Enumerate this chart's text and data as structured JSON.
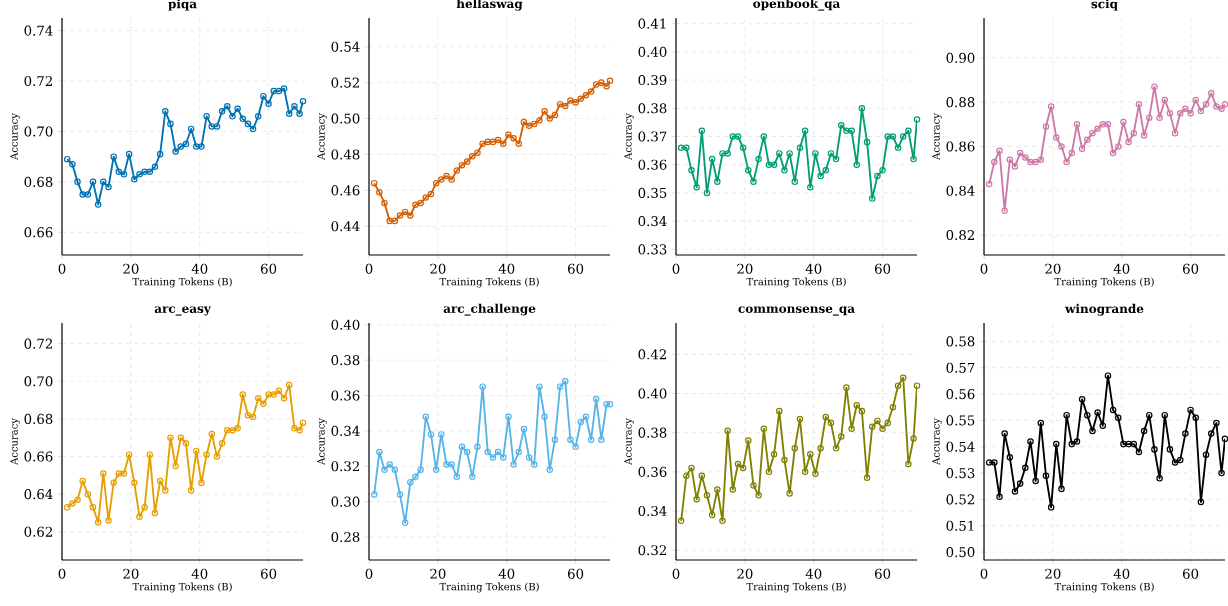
{
  "chart_data": [
    {
      "type": "line",
      "title": "piqa",
      "xlabel": "Training Tokens (B)",
      "ylabel": "Accuracy",
      "color": "#0072b2",
      "marker": "circle",
      "grid": true,
      "xlim": [
        0,
        70
      ],
      "xticks": [
        0,
        20,
        40,
        60
      ],
      "ylim": [
        0.651,
        0.745
      ],
      "yticks": [
        {
          "value": 0.66,
          "label": "0.66"
        },
        {
          "value": 0.68,
          "label": "0.68"
        },
        {
          "value": 0.7,
          "label": "0.70"
        },
        {
          "value": 0.72,
          "label": "0.72"
        },
        {
          "value": 0.74,
          "label": "0.74"
        }
      ],
      "x": [
        1.5,
        3,
        4.5,
        6,
        7.5,
        9,
        10.5,
        12,
        13.5,
        15,
        16.5,
        18,
        19.5,
        21,
        22.5,
        24,
        25.5,
        27,
        28.5,
        30,
        31.5,
        33,
        34.5,
        36,
        37.5,
        39,
        40.5,
        42,
        43.5,
        45,
        46.5,
        48,
        49.5,
        51,
        52.5,
        54,
        55.5,
        57,
        58.5,
        60,
        61.5,
        63,
        64.5,
        66,
        67.5,
        69,
        70
      ],
      "values": [
        0.689,
        0.687,
        0.68,
        0.675,
        0.675,
        0.68,
        0.671,
        0.68,
        0.678,
        0.69,
        0.684,
        0.683,
        0.691,
        0.681,
        0.683,
        0.684,
        0.684,
        0.686,
        0.691,
        0.708,
        0.703,
        0.692,
        0.694,
        0.695,
        0.701,
        0.694,
        0.694,
        0.706,
        0.702,
        0.702,
        0.708,
        0.71,
        0.706,
        0.709,
        0.705,
        0.703,
        0.701,
        0.706,
        0.714,
        0.711,
        0.716,
        0.716,
        0.717,
        0.707,
        0.71,
        0.707,
        0.712
      ]
    },
    {
      "type": "line",
      "title": "hellaswag",
      "xlabel": "Training Tokens (B)",
      "ylabel": "Accuracy",
      "color": "#d55e00",
      "marker": "circle",
      "grid": true,
      "xlim": [
        0,
        70
      ],
      "xticks": [
        0,
        20,
        40,
        60
      ],
      "ylim": [
        0.424,
        0.556
      ],
      "yticks": [
        {
          "value": 0.44,
          "label": "0.44"
        },
        {
          "value": 0.46,
          "label": "0.46"
        },
        {
          "value": 0.48,
          "label": "0.48"
        },
        {
          "value": 0.5,
          "label": "0.50"
        },
        {
          "value": 0.52,
          "label": "0.52"
        },
        {
          "value": 0.54,
          "label": "0.54"
        }
      ],
      "x": [
        1.5,
        3,
        4.5,
        6,
        7.5,
        9,
        10.5,
        12,
        13.5,
        15,
        16.5,
        18,
        19.5,
        21,
        22.5,
        24,
        25.5,
        27,
        28.5,
        30,
        31.5,
        33,
        34.5,
        36,
        37.5,
        39,
        40.5,
        42,
        43.5,
        45,
        46.5,
        48,
        49.5,
        51,
        52.5,
        54,
        55.5,
        57,
        58.5,
        60,
        61.5,
        63,
        64.5,
        66,
        67.5,
        69,
        70
      ],
      "values": [
        0.464,
        0.459,
        0.453,
        0.443,
        0.443,
        0.446,
        0.448,
        0.446,
        0.452,
        0.453,
        0.456,
        0.458,
        0.464,
        0.466,
        0.468,
        0.466,
        0.471,
        0.474,
        0.476,
        0.479,
        0.481,
        0.486,
        0.487,
        0.487,
        0.488,
        0.486,
        0.491,
        0.489,
        0.486,
        0.498,
        0.496,
        0.497,
        0.499,
        0.504,
        0.5,
        0.502,
        0.508,
        0.507,
        0.51,
        0.509,
        0.511,
        0.513,
        0.515,
        0.519,
        0.52,
        0.518,
        0.521
      ]
    },
    {
      "type": "line",
      "title": "openbook_qa",
      "xlabel": "Training Tokens (B)",
      "ylabel": "Accuracy",
      "color": "#009e73",
      "marker": "circle",
      "grid": true,
      "xlim": [
        0,
        70
      ],
      "xticks": [
        0,
        20,
        40,
        60
      ],
      "ylim": [
        0.328,
        0.412
      ],
      "yticks": [
        {
          "value": 0.33,
          "label": "0.33"
        },
        {
          "value": 0.34,
          "label": "0.34"
        },
        {
          "value": 0.35,
          "label": "0.35"
        },
        {
          "value": 0.36,
          "label": "0.36"
        },
        {
          "value": 0.37,
          "label": "0.37"
        },
        {
          "value": 0.38,
          "label": "0.38"
        },
        {
          "value": 0.39,
          "label": "0.39"
        },
        {
          "value": 0.4,
          "label": "0.40"
        },
        {
          "value": 0.41,
          "label": "0.41"
        }
      ],
      "x": [
        1.5,
        3,
        4.5,
        6,
        7.5,
        9,
        10.5,
        12,
        13.5,
        15,
        16.5,
        18,
        19.5,
        21,
        22.5,
        24,
        25.5,
        27,
        28.5,
        30,
        31.5,
        33,
        34.5,
        36,
        37.5,
        39,
        40.5,
        42,
        43.5,
        45,
        46.5,
        48,
        49.5,
        51,
        52.5,
        54,
        55.5,
        57,
        58.5,
        60,
        61.5,
        63,
        64.5,
        66,
        67.5,
        69,
        70
      ],
      "values": [
        0.366,
        0.366,
        0.358,
        0.352,
        0.372,
        0.35,
        0.362,
        0.354,
        0.364,
        0.364,
        0.37,
        0.37,
        0.366,
        0.358,
        0.354,
        0.362,
        0.37,
        0.36,
        0.36,
        0.364,
        0.358,
        0.364,
        0.354,
        0.366,
        0.372,
        0.352,
        0.364,
        0.356,
        0.358,
        0.364,
        0.362,
        0.374,
        0.372,
        0.372,
        0.36,
        0.38,
        0.368,
        0.348,
        0.356,
        0.358,
        0.37,
        0.37,
        0.366,
        0.37,
        0.372,
        0.362,
        0.376
      ]
    },
    {
      "type": "line",
      "title": "sciq",
      "xlabel": "Training Tokens (B)",
      "ylabel": "Accuracy",
      "color": "#cc79a7",
      "marker": "circle",
      "grid": true,
      "xlim": [
        0,
        70
      ],
      "xticks": [
        0,
        20,
        40,
        60
      ],
      "ylim": [
        0.811,
        0.918
      ],
      "yticks": [
        {
          "value": 0.82,
          "label": "0.82"
        },
        {
          "value": 0.84,
          "label": "0.84"
        },
        {
          "value": 0.86,
          "label": "0.86"
        },
        {
          "value": 0.88,
          "label": "0.88"
        },
        {
          "value": 0.9,
          "label": "0.90"
        }
      ],
      "x": [
        1.5,
        3,
        4.5,
        6,
        7.5,
        9,
        10.5,
        12,
        13.5,
        15,
        16.5,
        18,
        19.5,
        21,
        22.5,
        24,
        25.5,
        27,
        28.5,
        30,
        31.5,
        33,
        34.5,
        36,
        37.5,
        39,
        40.5,
        42,
        43.5,
        45,
        46.5,
        48,
        49.5,
        51,
        52.5,
        54,
        55.5,
        57,
        58.5,
        60,
        61.5,
        63,
        64.5,
        66,
        67.5,
        69,
        70
      ],
      "values": [
        0.843,
        0.853,
        0.858,
        0.831,
        0.854,
        0.851,
        0.857,
        0.855,
        0.853,
        0.853,
        0.854,
        0.869,
        0.878,
        0.864,
        0.86,
        0.853,
        0.857,
        0.87,
        0.859,
        0.863,
        0.866,
        0.868,
        0.87,
        0.87,
        0.857,
        0.86,
        0.871,
        0.862,
        0.866,
        0.879,
        0.865,
        0.873,
        0.887,
        0.873,
        0.881,
        0.875,
        0.866,
        0.875,
        0.877,
        0.875,
        0.881,
        0.876,
        0.879,
        0.884,
        0.878,
        0.877,
        0.879
      ]
    },
    {
      "type": "line",
      "title": "arc_easy",
      "xlabel": "Training Tokens (B)",
      "ylabel": "Accuracy",
      "color": "#e69f00",
      "marker": "circle",
      "grid": true,
      "xlim": [
        0,
        70
      ],
      "xticks": [
        0,
        20,
        40,
        60
      ],
      "ylim": [
        0.605,
        0.731
      ],
      "yticks": [
        {
          "value": 0.62,
          "label": "0.62"
        },
        {
          "value": 0.64,
          "label": "0.64"
        },
        {
          "value": 0.66,
          "label": "0.66"
        },
        {
          "value": 0.68,
          "label": "0.68"
        },
        {
          "value": 0.7,
          "label": "0.70"
        },
        {
          "value": 0.72,
          "label": "0.72"
        }
      ],
      "x": [
        1.5,
        3,
        4.5,
        6,
        7.5,
        9,
        10.5,
        12,
        13.5,
        15,
        16.5,
        18,
        19.5,
        21,
        22.5,
        24,
        25.5,
        27,
        28.5,
        30,
        31.5,
        33,
        34.5,
        36,
        37.5,
        39,
        40.5,
        42,
        43.5,
        45,
        46.5,
        48,
        49.5,
        51,
        52.5,
        54,
        55.5,
        57,
        58.5,
        60,
        61.5,
        63,
        64.5,
        66,
        67.5,
        69,
        70
      ],
      "values": [
        0.633,
        0.635,
        0.637,
        0.647,
        0.64,
        0.633,
        0.625,
        0.651,
        0.626,
        0.646,
        0.651,
        0.651,
        0.661,
        0.646,
        0.628,
        0.633,
        0.661,
        0.63,
        0.647,
        0.642,
        0.67,
        0.655,
        0.67,
        0.667,
        0.642,
        0.663,
        0.646,
        0.661,
        0.672,
        0.66,
        0.667,
        0.674,
        0.674,
        0.675,
        0.693,
        0.682,
        0.681,
        0.691,
        0.688,
        0.693,
        0.693,
        0.695,
        0.691,
        0.698,
        0.675,
        0.674,
        0.678
      ]
    },
    {
      "type": "line",
      "title": "arc_challenge",
      "xlabel": "Training Tokens (B)",
      "ylabel": "Accuracy",
      "color": "#56b4e9",
      "marker": "circle",
      "grid": true,
      "xlim": [
        0,
        70
      ],
      "xticks": [
        0,
        20,
        40,
        60
      ],
      "ylim": [
        0.267,
        0.401
      ],
      "yticks": [
        {
          "value": 0.28,
          "label": "0.28"
        },
        {
          "value": 0.3,
          "label": "0.30"
        },
        {
          "value": 0.32,
          "label": "0.32"
        },
        {
          "value": 0.34,
          "label": "0.34"
        },
        {
          "value": 0.36,
          "label": "0.36"
        },
        {
          "value": 0.38,
          "label": "0.38"
        },
        {
          "value": 0.4,
          "label": "0.40"
        }
      ],
      "x": [
        1.5,
        3,
        4.5,
        6,
        7.5,
        9,
        10.5,
        12,
        13.5,
        15,
        16.5,
        18,
        19.5,
        21,
        22.5,
        24,
        25.5,
        27,
        28.5,
        30,
        31.5,
        33,
        34.5,
        36,
        37.5,
        39,
        40.5,
        42,
        43.5,
        45,
        46.5,
        48,
        49.5,
        51,
        52.5,
        54,
        55.5,
        57,
        58.5,
        60,
        61.5,
        63,
        64.5,
        66,
        67.5,
        69,
        70
      ],
      "values": [
        0.304,
        0.328,
        0.318,
        0.321,
        0.318,
        0.304,
        0.288,
        0.311,
        0.314,
        0.318,
        0.348,
        0.338,
        0.318,
        0.338,
        0.321,
        0.321,
        0.314,
        0.331,
        0.328,
        0.314,
        0.331,
        0.365,
        0.328,
        0.325,
        0.328,
        0.325,
        0.348,
        0.321,
        0.328,
        0.341,
        0.325,
        0.321,
        0.365,
        0.348,
        0.318,
        0.335,
        0.365,
        0.368,
        0.335,
        0.331,
        0.345,
        0.348,
        0.335,
        0.358,
        0.335,
        0.355,
        0.355
      ]
    },
    {
      "type": "line",
      "title": "commonsense_qa",
      "xlabel": "Training Tokens (B)",
      "ylabel": "Accuracy",
      "color": "#808000",
      "marker": "circle",
      "grid": true,
      "xlim": [
        0,
        70
      ],
      "xticks": [
        0,
        20,
        40,
        60
      ],
      "ylim": [
        0.315,
        0.436
      ],
      "yticks": [
        {
          "value": 0.32,
          "label": "0.32"
        },
        {
          "value": 0.34,
          "label": "0.34"
        },
        {
          "value": 0.36,
          "label": "0.36"
        },
        {
          "value": 0.38,
          "label": "0.38"
        },
        {
          "value": 0.4,
          "label": "0.40"
        },
        {
          "value": 0.42,
          "label": "0.42"
        }
      ],
      "x": [
        1.5,
        3,
        4.5,
        6,
        7.5,
        9,
        10.5,
        12,
        13.5,
        15,
        16.5,
        18,
        19.5,
        21,
        22.5,
        24,
        25.5,
        27,
        28.5,
        30,
        31.5,
        33,
        34.5,
        36,
        37.5,
        39,
        40.5,
        42,
        43.5,
        45,
        46.5,
        48,
        49.5,
        51,
        52.5,
        54,
        55.5,
        57,
        58.5,
        60,
        61.5,
        63,
        64.5,
        66,
        67.5,
        69,
        70
      ],
      "values": [
        0.335,
        0.358,
        0.362,
        0.346,
        0.358,
        0.348,
        0.338,
        0.351,
        0.335,
        0.381,
        0.351,
        0.364,
        0.362,
        0.376,
        0.353,
        0.348,
        0.382,
        0.36,
        0.369,
        0.391,
        0.366,
        0.349,
        0.372,
        0.387,
        0.36,
        0.369,
        0.359,
        0.372,
        0.388,
        0.385,
        0.372,
        0.378,
        0.403,
        0.382,
        0.394,
        0.391,
        0.357,
        0.383,
        0.386,
        0.382,
        0.385,
        0.393,
        0.404,
        0.408,
        0.364,
        0.377,
        0.404
      ]
    },
    {
      "type": "line",
      "title": "winogrande",
      "xlabel": "Training Tokens (B)",
      "ylabel": "Accuracy",
      "color": "#000000",
      "marker": "circle",
      "grid": true,
      "xlim": [
        0,
        70
      ],
      "xticks": [
        0,
        20,
        40,
        60
      ],
      "ylim": [
        0.497,
        0.587
      ],
      "yticks": [
        {
          "value": 0.5,
          "label": "0.50"
        },
        {
          "value": 0.51,
          "label": "0.51"
        },
        {
          "value": 0.52,
          "label": "0.52"
        },
        {
          "value": 0.53,
          "label": "0.53"
        },
        {
          "value": 0.54,
          "label": "0.54"
        },
        {
          "value": 0.55,
          "label": "0.55"
        },
        {
          "value": 0.56,
          "label": "0.56"
        },
        {
          "value": 0.57,
          "label": "0.57"
        },
        {
          "value": 0.58,
          "label": "0.58"
        }
      ],
      "x": [
        1.5,
        3,
        4.5,
        6,
        7.5,
        9,
        10.5,
        12,
        13.5,
        15,
        16.5,
        18,
        19.5,
        21,
        22.5,
        24,
        25.5,
        27,
        28.5,
        30,
        31.5,
        33,
        34.5,
        36,
        37.5,
        39,
        40.5,
        42,
        43.5,
        45,
        46.5,
        48,
        49.5,
        51,
        52.5,
        54,
        55.5,
        57,
        58.5,
        60,
        61.5,
        63,
        64.5,
        66,
        67.5,
        69,
        70
      ],
      "values": [
        0.534,
        0.534,
        0.521,
        0.545,
        0.536,
        0.523,
        0.526,
        0.532,
        0.542,
        0.527,
        0.549,
        0.529,
        0.517,
        0.541,
        0.524,
        0.552,
        0.541,
        0.542,
        0.558,
        0.552,
        0.546,
        0.553,
        0.548,
        0.567,
        0.554,
        0.551,
        0.541,
        0.541,
        0.541,
        0.538,
        0.546,
        0.552,
        0.539,
        0.528,
        0.552,
        0.539,
        0.534,
        0.535,
        0.545,
        0.554,
        0.551,
        0.519,
        0.537,
        0.545,
        0.549,
        0.53,
        0.543
      ]
    }
  ]
}
